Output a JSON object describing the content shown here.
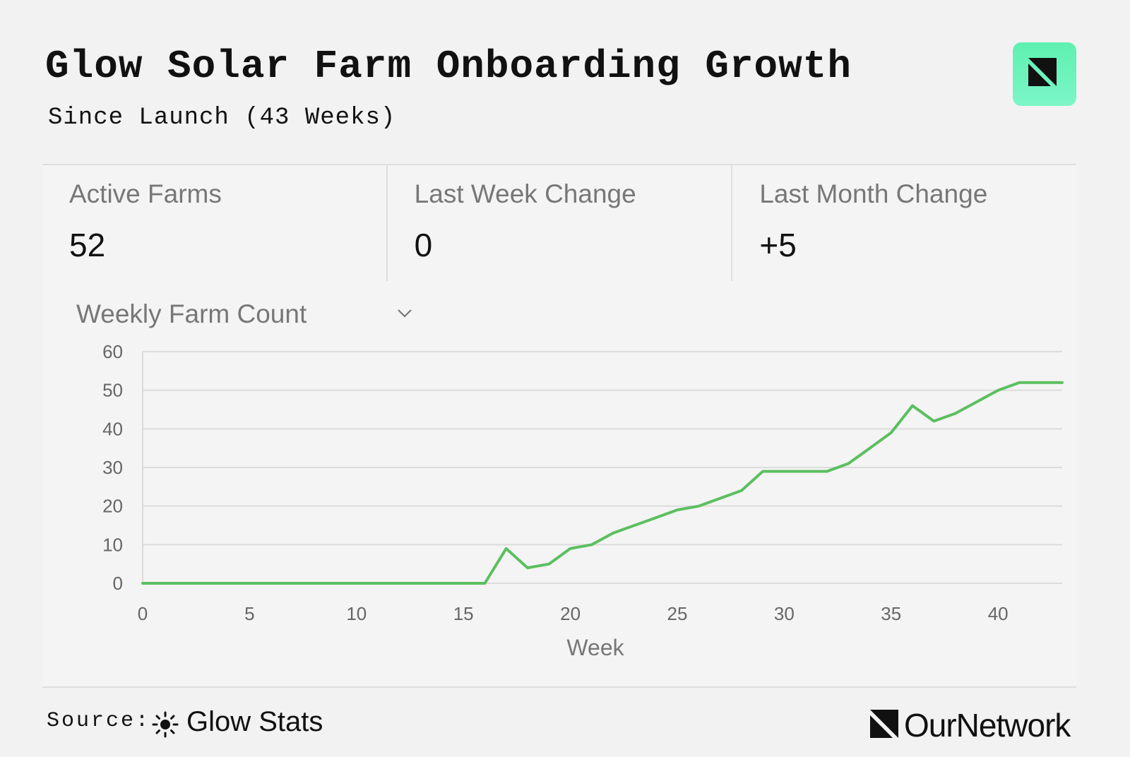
{
  "header": {
    "title": "Glow Solar Farm Onboarding Growth",
    "subtitle": "Since Launch (43 Weeks)"
  },
  "stats": [
    {
      "label": "Active Farms",
      "value": "52"
    },
    {
      "label": "Last Week Change",
      "value": "0"
    },
    {
      "label": "Last Month Change",
      "value": "+5"
    }
  ],
  "chart_select": {
    "label": "Weekly Farm Count"
  },
  "chart_data": {
    "type": "line",
    "title": "",
    "xlabel": "Week",
    "ylabel": "",
    "xlim": [
      0,
      43
    ],
    "ylim": [
      0,
      60
    ],
    "xticks": [
      0,
      5,
      10,
      15,
      20,
      25,
      30,
      35,
      40
    ],
    "yticks": [
      0,
      10,
      20,
      30,
      40,
      50,
      60
    ],
    "grid": true,
    "series": [
      {
        "name": "Weekly Farm Count",
        "color": "#5cbf60",
        "x": [
          0,
          1,
          2,
          3,
          4,
          5,
          6,
          7,
          8,
          9,
          10,
          11,
          12,
          13,
          14,
          15,
          16,
          17,
          18,
          19,
          20,
          21,
          22,
          23,
          24,
          25,
          26,
          27,
          28,
          29,
          30,
          31,
          32,
          33,
          34,
          35,
          36,
          37,
          38,
          39,
          40,
          41,
          42,
          43
        ],
        "y": [
          0,
          0,
          0,
          0,
          0,
          0,
          0,
          0,
          0,
          0,
          0,
          0,
          0,
          0,
          0,
          0,
          0,
          9,
          4,
          5,
          9,
          10,
          13,
          15,
          17,
          19,
          20,
          22,
          24,
          29,
          29,
          29,
          29,
          31,
          35,
          39,
          46,
          42,
          44,
          47,
          50,
          52,
          52,
          52
        ]
      }
    ]
  },
  "footer": {
    "source_label": "Source:",
    "source_name": "Glow Stats",
    "brand": "OurNetwork"
  },
  "colors": {
    "accent": "#5cbf60",
    "badge": "#6ff2bd",
    "background": "#f2f2f2"
  }
}
